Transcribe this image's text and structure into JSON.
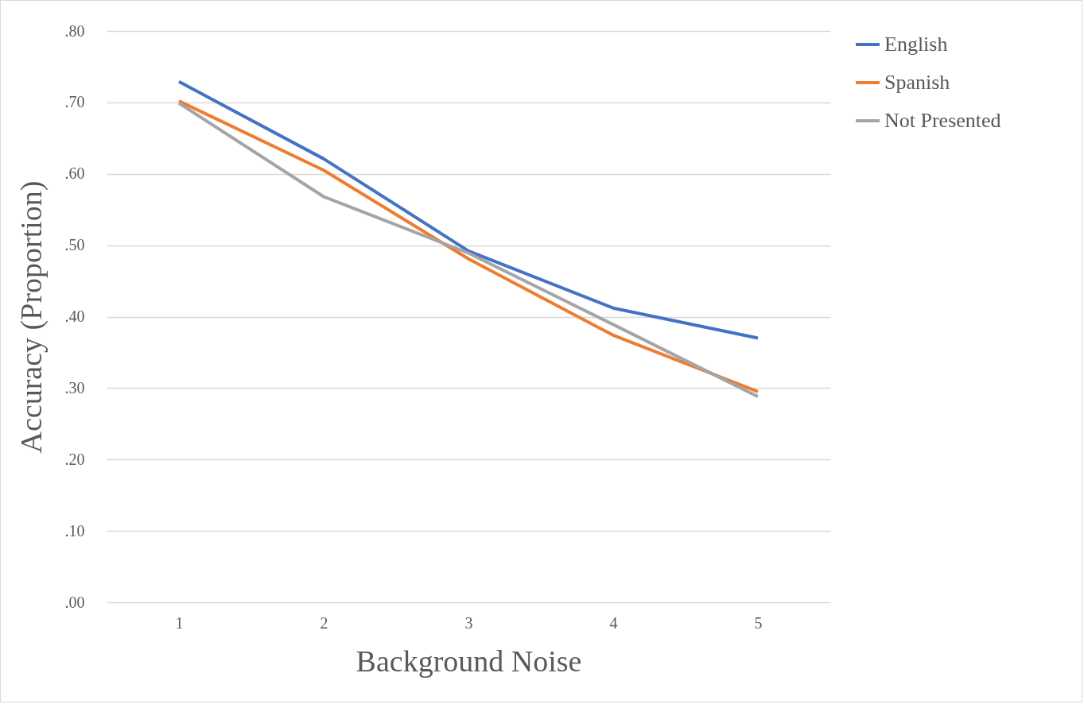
{
  "chart_data": {
    "type": "line",
    "xlabel": "Background Noise",
    "ylabel": "Accuracy (Proportion)",
    "categories": [
      "1",
      "2",
      "3",
      "4",
      "5"
    ],
    "series": [
      {
        "name": "English",
        "color": "#4472c4",
        "values": [
          0.729,
          0.621,
          0.492,
          0.412,
          0.37
        ]
      },
      {
        "name": "Spanish",
        "color": "#ed7d31",
        "values": [
          0.702,
          0.605,
          0.481,
          0.374,
          0.295
        ]
      },
      {
        "name": "Not Presented",
        "color": "#a5a5a5",
        "values": [
          0.699,
          0.568,
          0.489,
          0.389,
          0.288
        ]
      }
    ],
    "ylim": [
      0,
      0.8
    ],
    "yticks": [
      {
        "value": 0,
        "label": ".00"
      },
      {
        "value": 0.1,
        "label": ".10"
      },
      {
        "value": 0.2,
        "label": ".20"
      },
      {
        "value": 0.3,
        "label": ".30"
      },
      {
        "value": 0.4,
        "label": ".40"
      },
      {
        "value": 0.5,
        "label": ".50"
      },
      {
        "value": 0.6,
        "label": ".60"
      },
      {
        "value": 0.7,
        "label": ".70"
      },
      {
        "value": 0.8,
        "label": ".80"
      }
    ],
    "grid": "y",
    "legend": "right",
    "line_style": "solid"
  }
}
